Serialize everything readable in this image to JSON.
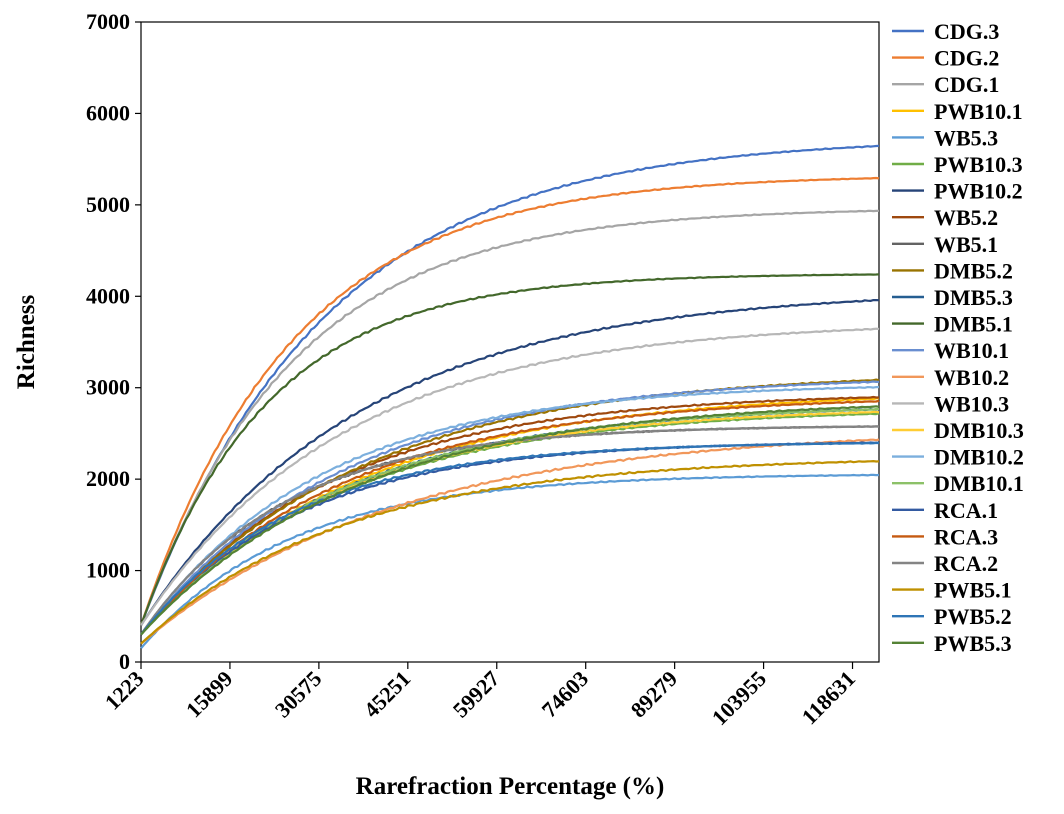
{
  "chart_data": {
    "type": "line",
    "xlabel": "Rarefraction Percentage (%)",
    "ylabel": "Richness",
    "x_ticks": [
      "1223",
      "15899",
      "30575",
      "45251",
      "59927",
      "74603",
      "89279",
      "103955",
      "118631"
    ],
    "y_ticks": [
      "0",
      "1000",
      "2000",
      "3000",
      "4000",
      "5000",
      "6000",
      "7000"
    ],
    "xlim": [
      1223,
      123000
    ],
    "ylim": [
      0,
      7000
    ],
    "grid": false,
    "legend_position": "right",
    "series": [
      {
        "name": "CDG.3",
        "color": "#4472C4",
        "start": 400,
        "plateau": 5740,
        "rate": 3.3e-05
      },
      {
        "name": "CDG.2",
        "color": "#ED7D31",
        "start": 400,
        "plateau": 5330,
        "rate": 4e-05
      },
      {
        "name": "CDG.1",
        "color": "#A5A5A5",
        "start": 400,
        "plateau": 4970,
        "rate": 4e-05
      },
      {
        "name": "PWB10.1",
        "color": "#FFC000",
        "start": 300,
        "plateau": 2970,
        "rate": 2.8e-05
      },
      {
        "name": "WB5.3",
        "color": "#5B9BD5",
        "start": 150,
        "plateau": 2060,
        "rate": 4e-05
      },
      {
        "name": "PWB10.3",
        "color": "#70AD47",
        "start": 300,
        "plateau": 2780,
        "rate": 3e-05
      },
      {
        "name": "PWB10.2",
        "color": "#264478",
        "start": 400,
        "plateau": 4080,
        "rate": 2.8e-05
      },
      {
        "name": "WB5.2",
        "color": "#9E480E",
        "start": 300,
        "plateau": 2950,
        "rate": 3.2e-05
      },
      {
        "name": "WB5.1",
        "color": "#636363",
        "start": 300,
        "plateau": 2590,
        "rate": 4.2e-05
      },
      {
        "name": "DMB5.2",
        "color": "#997300",
        "start": 300,
        "plateau": 3180,
        "rate": 2.8e-05
      },
      {
        "name": "DMB5.3",
        "color": "#255E91",
        "start": 300,
        "plateau": 2830,
        "rate": 3e-05
      },
      {
        "name": "DMB5.1",
        "color": "#43682B",
        "start": 400,
        "plateau": 4250,
        "rate": 4.8e-05
      },
      {
        "name": "WB10.1",
        "color": "#698ED0",
        "start": 300,
        "plateau": 3140,
        "rate": 3e-05
      },
      {
        "name": "WB10.2",
        "color": "#F1975A",
        "start": 200,
        "plateau": 2560,
        "rate": 2.4e-05
      },
      {
        "name": "WB10.3",
        "color": "#B7B7B7",
        "start": 400,
        "plateau": 3730,
        "rate": 3e-05
      },
      {
        "name": "DMB10.3",
        "color": "#FFCD33",
        "start": 300,
        "plateau": 2800,
        "rate": 3e-05
      },
      {
        "name": "DMB10.2",
        "color": "#7CAFDD",
        "start": 300,
        "plateau": 3050,
        "rate": 3.4e-05
      },
      {
        "name": "DMB10.1",
        "color": "#8CC168",
        "start": 300,
        "plateau": 2830,
        "rate": 3e-05
      },
      {
        "name": "RCA.1",
        "color": "#335AA1",
        "start": 300,
        "plateau": 2420,
        "rate": 3.8e-05
      },
      {
        "name": "RCA.3",
        "color": "#C55A11",
        "start": 300,
        "plateau": 2920,
        "rate": 3e-05
      },
      {
        "name": "RCA.2",
        "color": "#848484",
        "start": 300,
        "plateau": 2590,
        "rate": 4.2e-05
      },
      {
        "name": "PWB5.1",
        "color": "#BF9000",
        "start": 200,
        "plateau": 2250,
        "rate": 3e-05
      },
      {
        "name": "PWB5.2",
        "color": "#2E75B6",
        "start": 300,
        "plateau": 2410,
        "rate": 4e-05
      },
      {
        "name": "PWB5.3",
        "color": "#548235",
        "start": 300,
        "plateau": 2880,
        "rate": 2.8e-05
      }
    ]
  }
}
